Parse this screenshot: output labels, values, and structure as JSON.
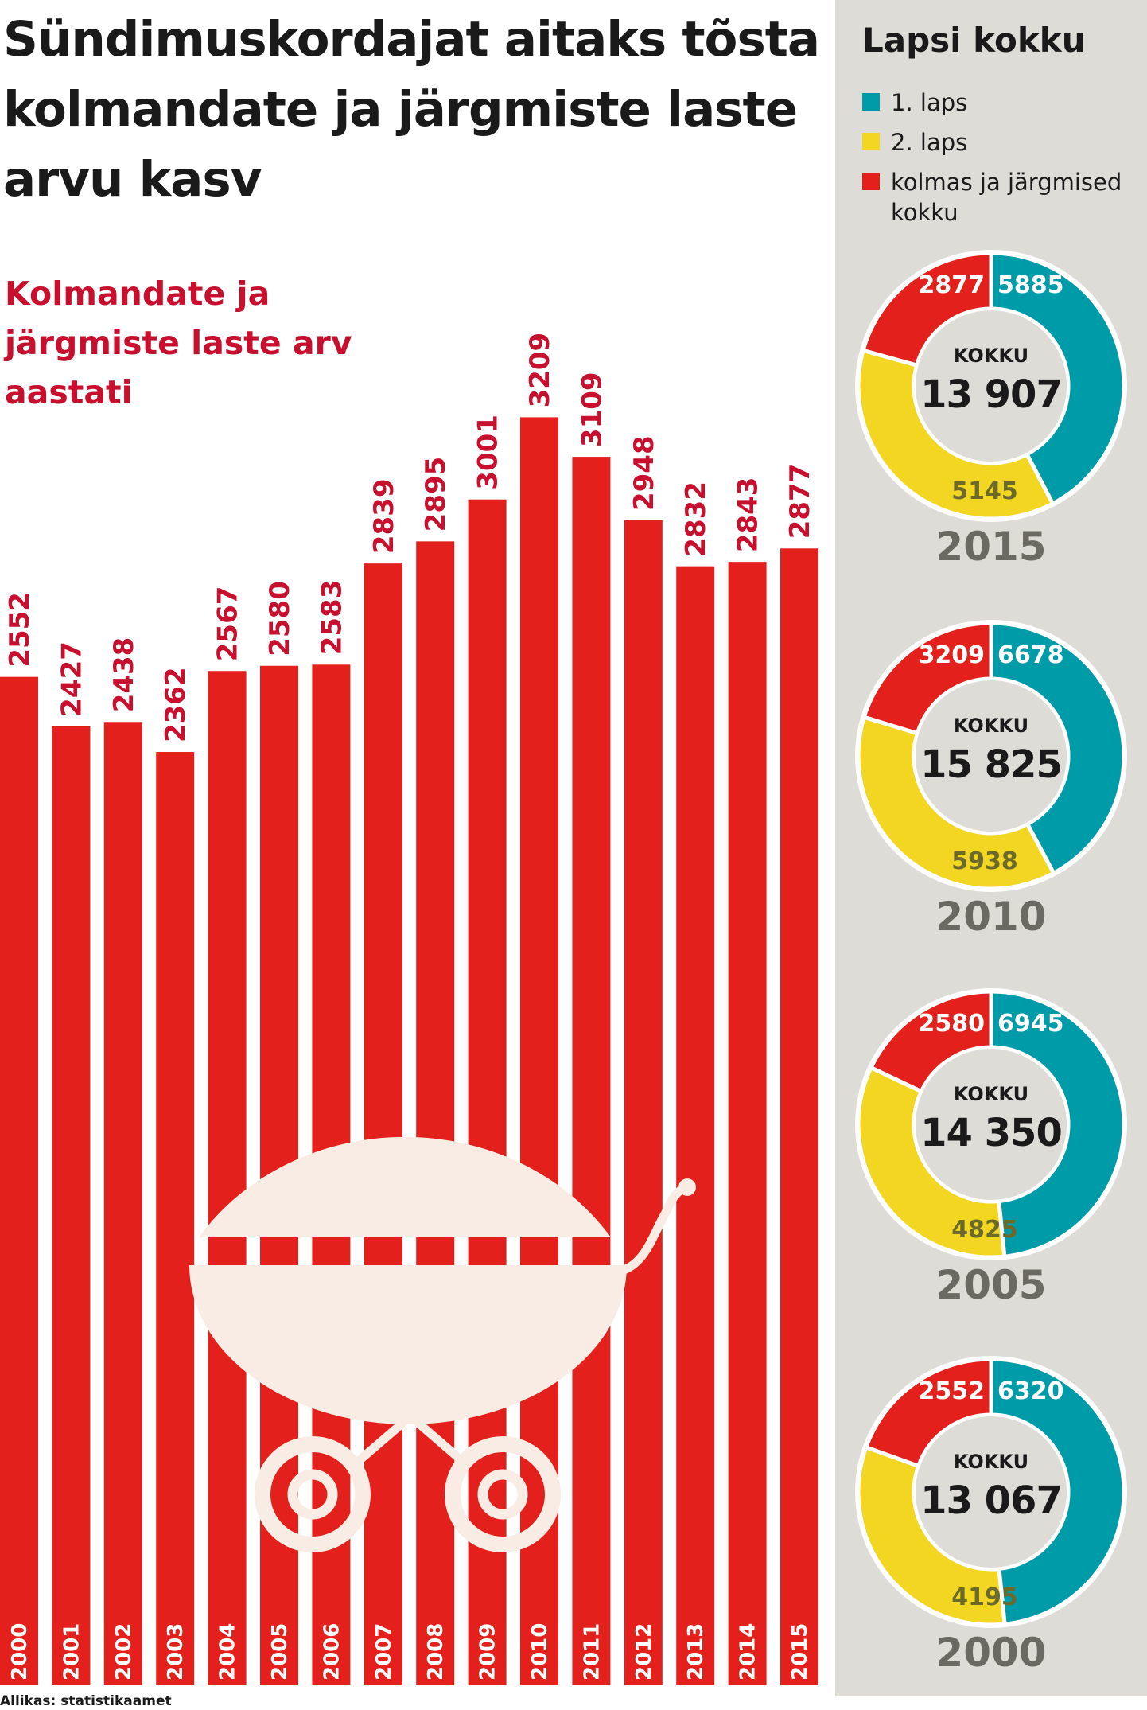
{
  "title": "Sündimuskordajat aitaks tõsta kolmandate ja järgmiste laste arvu kasv",
  "colors": {
    "bar": "#e3201b",
    "label": "#c8102e",
    "first": "#009ba9",
    "second": "#f2d622",
    "third": "#e3201b",
    "panel": "#dedcd7",
    "stroller": "#f9ece4",
    "year": "#6b6a62"
  },
  "side": {
    "title": "Lapsi kokku",
    "legend": [
      {
        "label": "1. laps",
        "color": "#009ba9"
      },
      {
        "label": "2. laps",
        "color": "#f2d622"
      },
      {
        "label": "kolmas ja järgmised kokku",
        "color": "#e3201b"
      }
    ]
  },
  "source": "Allikas: statistikaamet",
  "chart_data": [
    {
      "type": "bar",
      "title": "Kolmandate ja järgmiste laste arv aastati",
      "categories": [
        "2000",
        "2001",
        "2002",
        "2003",
        "2004",
        "2005",
        "2006",
        "2007",
        "2008",
        "2009",
        "2010",
        "2011",
        "2012",
        "2013",
        "2014",
        "2015"
      ],
      "values": [
        2552,
        2427,
        2438,
        2362,
        2567,
        2580,
        2583,
        2839,
        2895,
        3001,
        3209,
        3109,
        2948,
        2832,
        2843,
        2877
      ]
    },
    {
      "type": "pie",
      "year": "2015",
      "center_label": "KOKKU",
      "total": "13 907",
      "slices": [
        {
          "name": "1. laps",
          "value": 5885
        },
        {
          "name": "2. laps",
          "value": 5145
        },
        {
          "name": "kolmas ja järgmised kokku",
          "value": 2877
        }
      ]
    },
    {
      "type": "pie",
      "year": "2010",
      "center_label": "KOKKU",
      "total": "15 825",
      "slices": [
        {
          "name": "1. laps",
          "value": 6678
        },
        {
          "name": "2. laps",
          "value": 5938
        },
        {
          "name": "kolmas ja järgmised kokku",
          "value": 3209
        }
      ]
    },
    {
      "type": "pie",
      "year": "2005",
      "center_label": "KOKKU",
      "total": "14 350",
      "slices": [
        {
          "name": "1. laps",
          "value": 6945
        },
        {
          "name": "2. laps",
          "value": 4825
        },
        {
          "name": "kolmas ja järgmised kokku",
          "value": 2580
        }
      ]
    },
    {
      "type": "pie",
      "year": "2000",
      "center_label": "KOKKU",
      "total": "13 067",
      "slices": [
        {
          "name": "1. laps",
          "value": 6320
        },
        {
          "name": "2. laps",
          "value": 4195
        },
        {
          "name": "kolmas ja järgmised kokku",
          "value": 2552
        }
      ]
    }
  ]
}
